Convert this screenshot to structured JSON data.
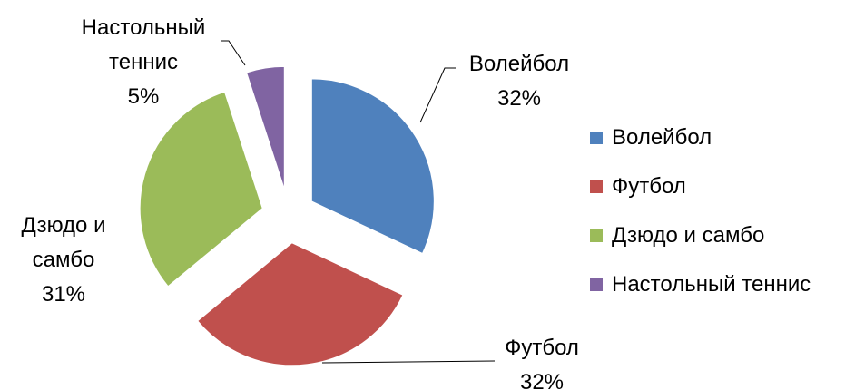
{
  "chart_data": {
    "type": "pie",
    "categories": [
      "Волейбол",
      "Футбол",
      "Дзюдо и самбо",
      "Настольный теннис"
    ],
    "values": [
      32,
      32,
      31,
      5
    ],
    "value_labels": [
      "32%",
      "32%",
      "31%",
      "5%"
    ],
    "colors": [
      "#4f81bd",
      "#c0504d",
      "#9bbb59",
      "#8064a2"
    ],
    "legend": "right"
  }
}
